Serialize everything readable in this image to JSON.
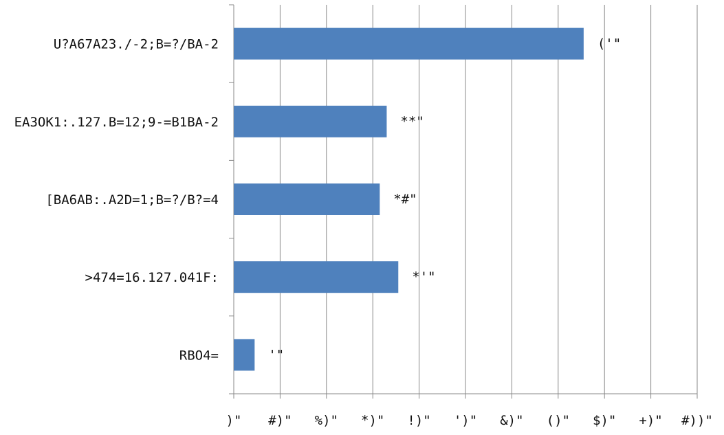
{
  "chart_data": {
    "type": "bar",
    "orientation": "horizontal",
    "categories": [
      "U?A67A23./-2;B=?/BA-2",
      "EA3OK1:.127.B=12;9-=B1BA-2",
      "[BA6AB:.A2D=1;B=?/B?=4",
      ">474=16.127.041F:",
      "RBO4="
    ],
    "values": [
      75.5,
      33,
      31.5,
      35.5,
      4.5
    ],
    "data_labels": [
      "('\"",
      "**\"",
      "*#\"",
      "*'\"",
      "'\""
    ],
    "x_tick_labels": [
      ")\"",
      "#)\"",
      "%)\"",
      "*)\"",
      "!)\"",
      "')\"",
      "&)\"",
      "()\"",
      "$)\"",
      "+)\"",
      "#))\""
    ],
    "xlim": [
      0,
      100
    ],
    "grid": true,
    "colors": {
      "bar": "#4f81bd",
      "grid": "#888888",
      "axis": "#888888"
    }
  }
}
